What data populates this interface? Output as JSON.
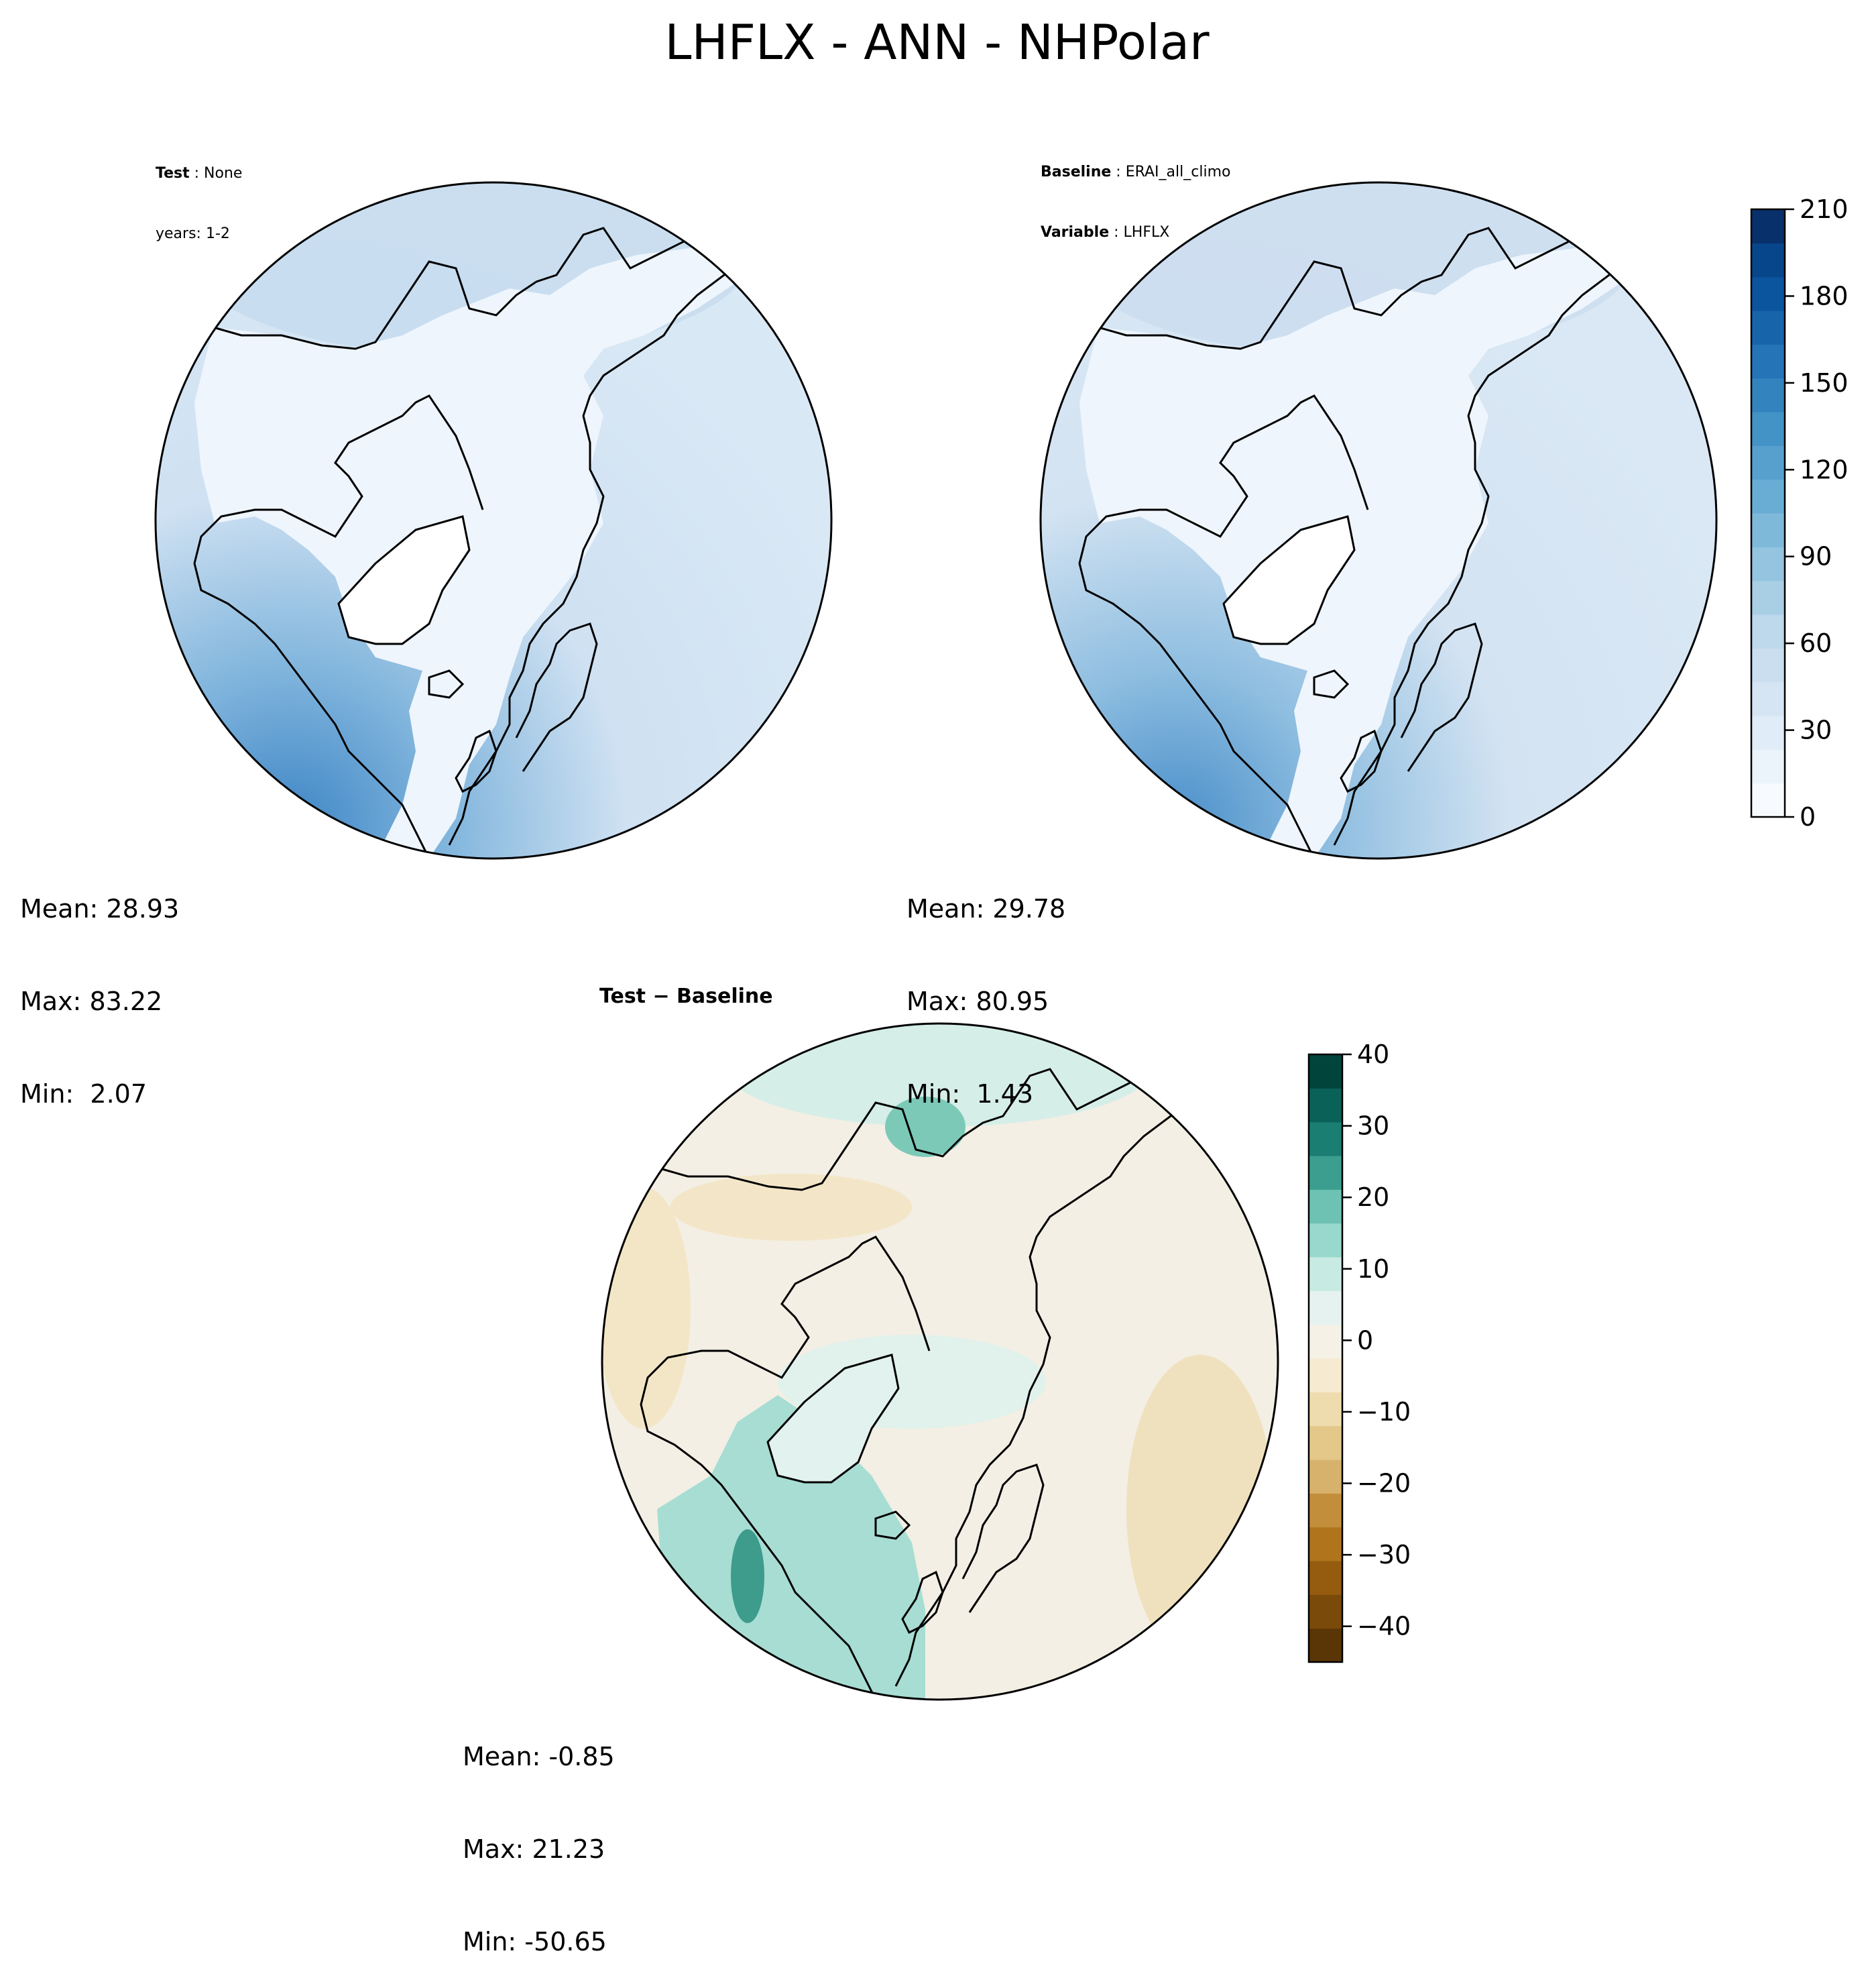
{
  "figure": {
    "title": "LHFLX - ANN - NHPolar"
  },
  "panels": [
    {
      "id": "test",
      "header": [
        {
          "key": "Test",
          "value": "None"
        },
        {
          "key": "",
          "value": "years: 1-2"
        }
      ],
      "stats": {
        "mean": "Mean: 28.93",
        "max": "Max: 83.22",
        "min": "Min:  2.07"
      }
    },
    {
      "id": "baseline",
      "header": [
        {
          "key": "Baseline",
          "value": "ERAI_all_climo"
        },
        {
          "key": "Variable",
          "value": "LHFLX"
        }
      ],
      "stats": {
        "mean": "Mean: 29.78",
        "max": "Max: 80.95",
        "min": "Min:  1.43"
      }
    },
    {
      "id": "diff",
      "title": "Test − Baseline",
      "stats": {
        "mean": "Mean: -0.85",
        "max": "Max: 21.23",
        "min": "Min: -50.65"
      }
    }
  ],
  "colorbars": [
    {
      "id": "abs",
      "ticks": [
        "0",
        "30",
        "60",
        "90",
        "120",
        "150",
        "180",
        "210"
      ],
      "range": [
        0,
        210
      ],
      "colors": [
        "#f7fbff",
        "#ebf3fb",
        "#e0ecf8",
        "#d5e5f4",
        "#cadef0",
        "#bed8ec",
        "#a9cfe5",
        "#94c4df",
        "#7fb9da",
        "#69add5",
        "#57a0ce",
        "#4493c7",
        "#3383be",
        "#2474b7",
        "#1764ab",
        "#0b559f",
        "#08468b",
        "#08306b"
      ]
    },
    {
      "id": "diff",
      "ticks": [
        "−40",
        "−30",
        "−20",
        "−10",
        "0",
        "10",
        "20",
        "30",
        "40"
      ],
      "range": [
        -45,
        40
      ],
      "colors": [
        "#5a3505",
        "#7a4a0a",
        "#955c0f",
        "#b0741c",
        "#c38e3c",
        "#d7b26c",
        "#e3c88a",
        "#efdcae",
        "#f6ebd0",
        "#f5f1e6",
        "#e6f2ef",
        "#c7ebe3",
        "#99d8cc",
        "#6ec2b3",
        "#3c9e8f",
        "#1b7e72",
        "#0a6157",
        "#01443b"
      ]
    }
  ],
  "map_colors": {
    "ocean_light": "#d7e6f4",
    "ocean_mid": "#b7d2ea",
    "ocean_dark": "#5f9dd0",
    "land": "#f2f7fd",
    "greenland_core": "#ffffff",
    "coast": "#000000",
    "diff_neutral": "#f3efe4",
    "diff_teal": "#a8ddd3",
    "diff_teal_dark": "#4fab9a",
    "diff_tan": "#f0dfb9"
  }
}
